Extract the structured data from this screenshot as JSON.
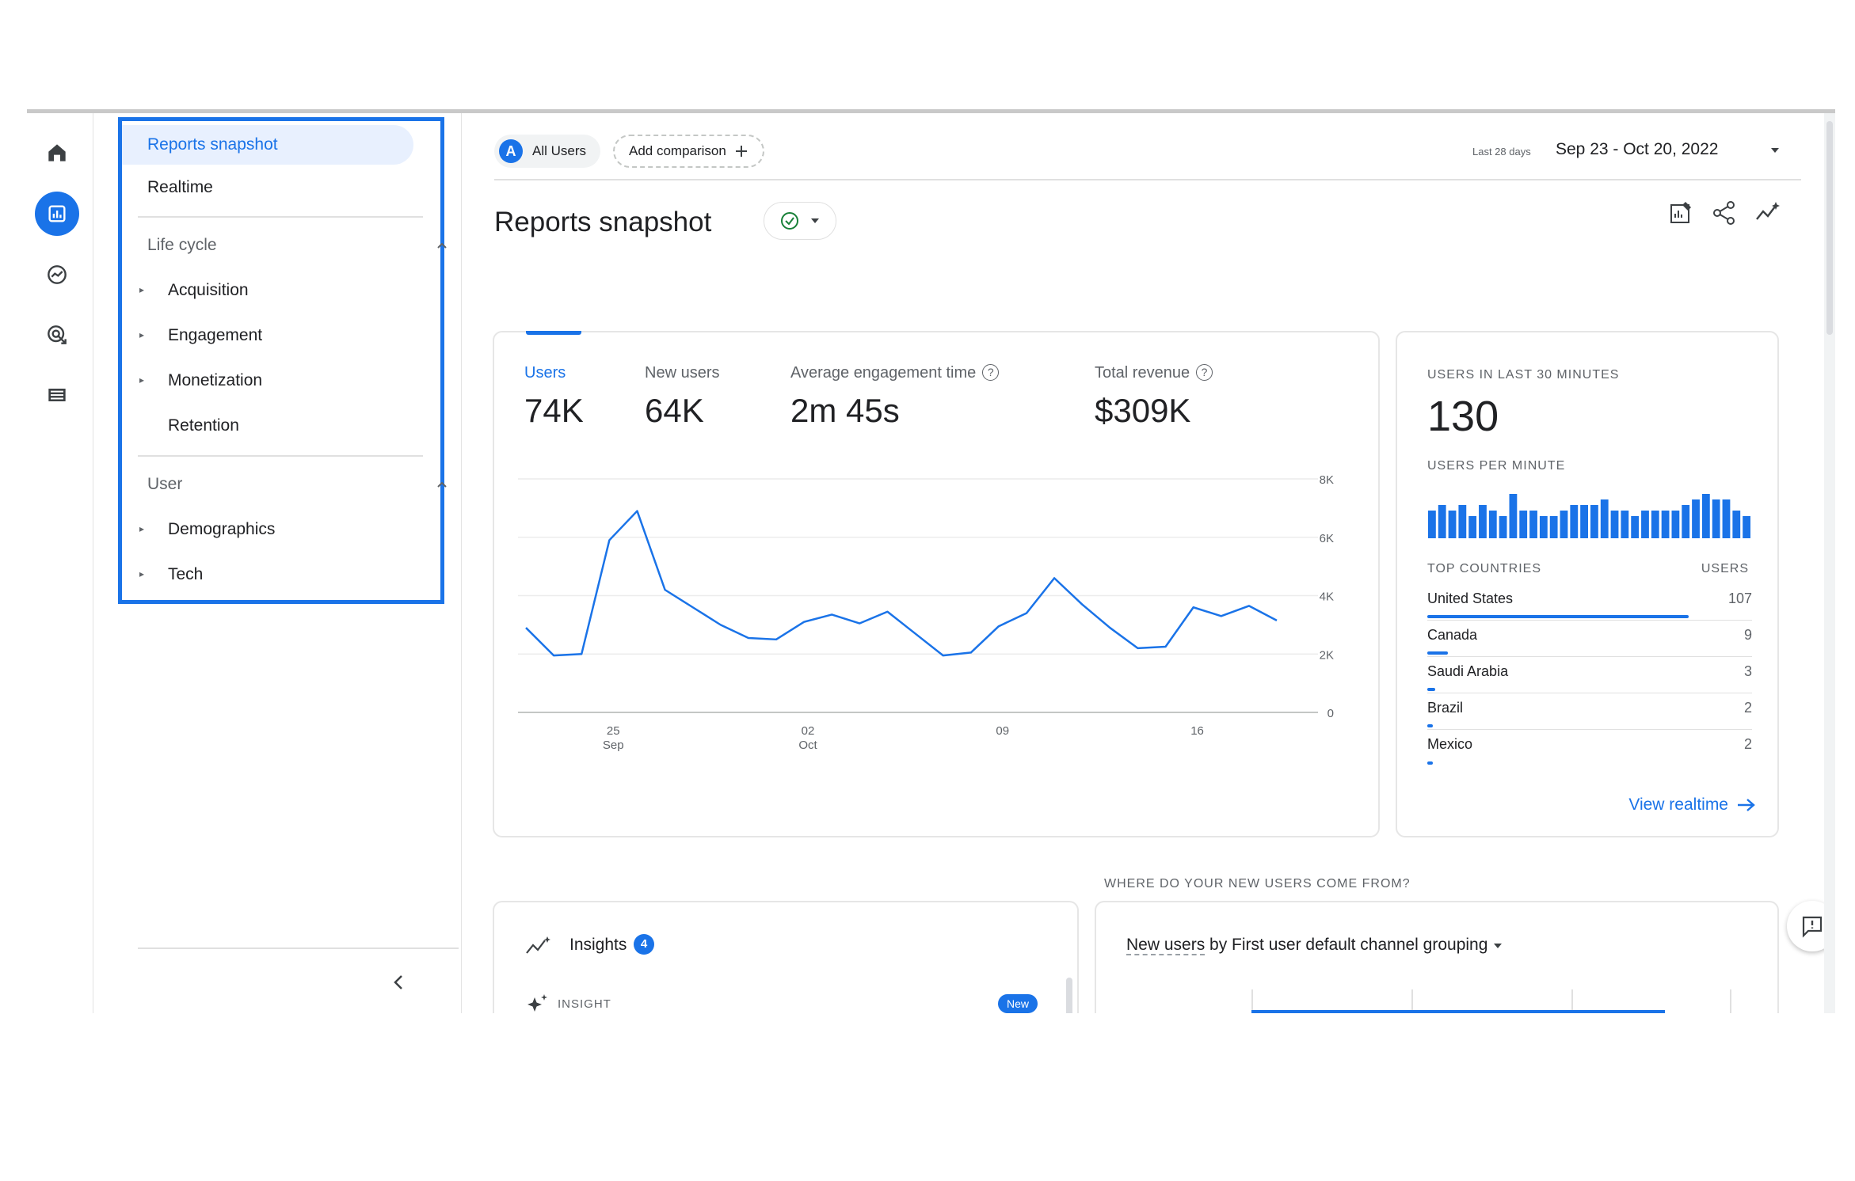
{
  "nav": {
    "reports_snapshot": "Reports snapshot",
    "realtime": "Realtime",
    "lifecycle": {
      "title": "Life cycle",
      "items": [
        "Acquisition",
        "Engagement",
        "Monetization",
        "Retention"
      ]
    },
    "user": {
      "title": "User",
      "items": [
        "Demographics",
        "Tech"
      ]
    }
  },
  "header": {
    "segment_badge": "A",
    "segment_label": "All Users",
    "add_comparison": "Add comparison",
    "date_small": "Last 28 days",
    "date_range": "Sep 23 - Oct 20, 2022"
  },
  "page": {
    "title": "Reports snapshot"
  },
  "metrics": [
    {
      "label": "Users",
      "value": "74K"
    },
    {
      "label": "New users",
      "value": "64K"
    },
    {
      "label": "Average engagement time",
      "value": "2m 45s"
    },
    {
      "label": "Total revenue",
      "value": "$309K"
    }
  ],
  "chart_data": {
    "type": "line",
    "x_tick_labels": [
      {
        "day": "25",
        "month": "Sep"
      },
      {
        "day": "02",
        "month": "Oct"
      },
      {
        "day": "09",
        "month": ""
      },
      {
        "day": "16",
        "month": ""
      }
    ],
    "y_tick_labels": [
      "0",
      "2K",
      "4K",
      "6K",
      "8K"
    ],
    "ylim": [
      0,
      8000
    ],
    "x": [
      "Sep 23",
      "Sep 24",
      "Sep 25",
      "Sep 26",
      "Sep 27",
      "Sep 28",
      "Sep 29",
      "Sep 30",
      "Oct 1",
      "Oct 2",
      "Oct 3",
      "Oct 4",
      "Oct 5",
      "Oct 6",
      "Oct 7",
      "Oct 8",
      "Oct 9",
      "Oct 10",
      "Oct 11",
      "Oct 12",
      "Oct 13",
      "Oct 14",
      "Oct 15",
      "Oct 16",
      "Oct 17",
      "Oct 18",
      "Oct 19",
      "Oct 20"
    ],
    "series": [
      {
        "values": [
          2900,
          1950,
          2000,
          5900,
          6900,
          4200,
          3600,
          3000,
          2550,
          2500,
          3100,
          3350,
          3050,
          3450,
          2700,
          1950,
          2050,
          2950,
          3400,
          4600,
          3700,
          2900,
          2200,
          2250,
          3600,
          3300,
          3650,
          3150
        ]
      }
    ],
    "grid": true,
    "color": "#1a73e8"
  },
  "realtime": {
    "users_caption": "USERS IN LAST 30 MINUTES",
    "users_count": "130",
    "per_minute_caption": "USERS PER MINUTE",
    "per_minute": [
      5,
      6,
      5,
      6,
      4,
      6,
      5,
      4,
      8,
      5,
      5,
      4,
      4,
      5,
      6,
      6,
      6,
      7,
      5,
      5,
      4,
      5,
      5,
      5,
      5,
      6,
      7,
      8,
      7,
      7,
      5,
      4
    ],
    "countries_caption": "TOP COUNTRIES",
    "users_col": "USERS",
    "countries": [
      {
        "name": "United States",
        "value": "107",
        "fraction": 1.0
      },
      {
        "name": "Canada",
        "value": "9",
        "fraction": 0.08
      },
      {
        "name": "Saudi Arabia",
        "value": "3",
        "fraction": 0.03
      },
      {
        "name": "Brazil",
        "value": "2",
        "fraction": 0.02
      },
      {
        "name": "Mexico",
        "value": "2",
        "fraction": 0.02
      }
    ],
    "view_realtime": "View realtime"
  },
  "acquisition": {
    "caption": "WHERE DO YOUR NEW USERS COME FROM?",
    "selector_prefix": "New users",
    "selector_rest": " by First user default channel grouping"
  },
  "insights": {
    "title": "Insights",
    "count": "4",
    "insight_label": "INSIGHT",
    "new_pill": "New"
  }
}
